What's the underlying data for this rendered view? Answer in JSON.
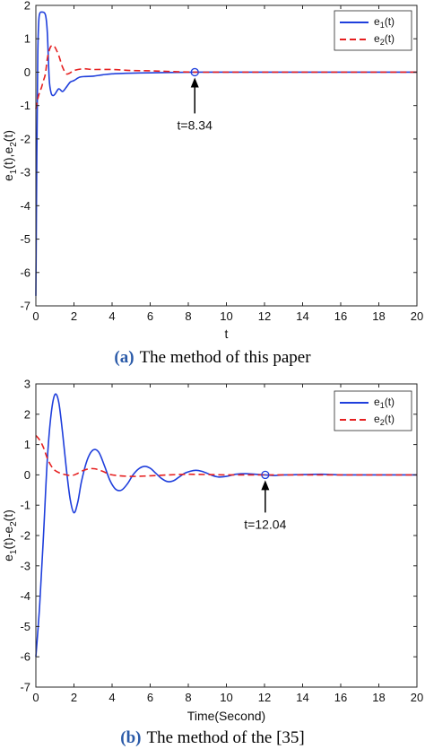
{
  "chart_data": [
    {
      "type": "line",
      "caption_letter": "(a)",
      "caption_text": "The method of this paper",
      "xlabel": "t",
      "ylabel": "e1(t),e2(t)",
      "xlim": [
        0,
        20
      ],
      "ylim": [
        -7,
        2
      ],
      "xticks": [
        0,
        2,
        4,
        6,
        8,
        10,
        12,
        14,
        16,
        18,
        20
      ],
      "yticks": [
        -7,
        -6,
        -5,
        -4,
        -3,
        -2,
        -1,
        0,
        1,
        2
      ],
      "grid": false,
      "legend_position": "top-right",
      "series": [
        {
          "name": "e1(t)",
          "color": "#1f3fdc",
          "style": "solid",
          "x": [
            0,
            0.05,
            0.1,
            0.15,
            0.2,
            0.3,
            0.5,
            0.6,
            0.7,
            0.8,
            0.9,
            1.0,
            1.2,
            1.4,
            1.6,
            1.8,
            2.0,
            2.3,
            2.6,
            3.0,
            3.5,
            4.0,
            5.0,
            6.0,
            7.0,
            8.34,
            10,
            12,
            14,
            16,
            18,
            20
          ],
          "y": [
            -6.7,
            -2.5,
            0.5,
            1.5,
            1.75,
            1.8,
            1.72,
            1.2,
            -0.2,
            -0.62,
            -0.7,
            -0.66,
            -0.5,
            -0.58,
            -0.45,
            -0.3,
            -0.25,
            -0.15,
            -0.13,
            -0.12,
            -0.08,
            -0.05,
            -0.03,
            -0.02,
            -0.01,
            0,
            0,
            0,
            0,
            0,
            0,
            0
          ]
        },
        {
          "name": "e2(t)",
          "color": "#e62020",
          "style": "dashed",
          "x": [
            0,
            0.1,
            0.2,
            0.3,
            0.4,
            0.5,
            0.6,
            0.7,
            0.8,
            0.9,
            1.0,
            1.2,
            1.4,
            1.6,
            1.8,
            2.0,
            2.5,
            3.0,
            4.0,
            5.0,
            6.0,
            7.0,
            8.34,
            10,
            12,
            14,
            16,
            18,
            20
          ],
          "y": [
            -1.1,
            -0.8,
            -0.6,
            -0.45,
            -0.25,
            -0.05,
            0.4,
            0.65,
            0.78,
            0.8,
            0.75,
            0.5,
            0.15,
            -0.05,
            -0.02,
            0.05,
            0.1,
            0.08,
            0.08,
            0.05,
            0.04,
            0.02,
            0,
            0,
            0,
            0,
            0,
            0,
            0
          ]
        }
      ],
      "annotation": {
        "label": "t=8.34",
        "x": 8.34,
        "y": 0
      }
    },
    {
      "type": "line",
      "caption_letter": "(b)",
      "caption_text": "The method of the [35]",
      "xlabel": "Time(Second)",
      "ylabel": "e1(t)-e2(t)",
      "xlim": [
        0,
        20
      ],
      "ylim": [
        -7,
        3
      ],
      "xticks": [
        0,
        2,
        4,
        6,
        8,
        10,
        12,
        14,
        16,
        18,
        20
      ],
      "yticks": [
        -7,
        -6,
        -5,
        -4,
        -3,
        -2,
        -1,
        0,
        1,
        2,
        3
      ],
      "grid": false,
      "legend_position": "top-right",
      "series": [
        {
          "name": "e1(t)",
          "color": "#1f3fdc",
          "style": "solid",
          "x": [
            0,
            0.2,
            0.4,
            0.6,
            0.8,
            1.0,
            1.2,
            1.4,
            1.6,
            1.8,
            2.0,
            2.2,
            2.4,
            2.7,
            3.0,
            3.3,
            3.6,
            3.9,
            4.2,
            4.5,
            4.8,
            5.1,
            5.4,
            5.7,
            6.0,
            6.3,
            6.6,
            6.9,
            7.2,
            7.5,
            7.8,
            8.1,
            8.4,
            8.7,
            9.0,
            9.3,
            9.6,
            10.0,
            10.5,
            11.0,
            11.5,
            12.04,
            12.5,
            13.0,
            14.0,
            15.0,
            15.5,
            16.0,
            17.0,
            18.0,
            19.0,
            20.0
          ],
          "y": [
            -6.0,
            -4.3,
            -2.0,
            0.5,
            2.0,
            2.65,
            2.4,
            1.4,
            0.2,
            -0.8,
            -1.25,
            -0.9,
            -0.2,
            0.5,
            0.82,
            0.75,
            0.3,
            -0.2,
            -0.48,
            -0.5,
            -0.3,
            0.0,
            0.2,
            0.28,
            0.22,
            0.05,
            -0.12,
            -0.22,
            -0.2,
            -0.08,
            0.05,
            0.12,
            0.15,
            0.12,
            0.05,
            -0.03,
            -0.07,
            -0.05,
            0.02,
            0.04,
            0.02,
            0.0,
            -0.02,
            0.0,
            0.01,
            0.02,
            0.01,
            0.0,
            0.0,
            0.0,
            0.0,
            0.0
          ]
        },
        {
          "name": "e2(t)",
          "color": "#e62020",
          "style": "dashed",
          "x": [
            0,
            0.2,
            0.4,
            0.6,
            0.8,
            1.0,
            1.3,
            1.6,
            1.9,
            2.2,
            2.5,
            2.8,
            3.1,
            3.5,
            4.0,
            5.0,
            6.0,
            7.0,
            8.0,
            9.0,
            10.0,
            11.0,
            12.04,
            13.0,
            14.0,
            16.0,
            18.0,
            20.0
          ],
          "y": [
            1.3,
            1.15,
            0.9,
            0.55,
            0.3,
            0.15,
            0.05,
            0.0,
            -0.02,
            0.05,
            0.15,
            0.2,
            0.2,
            0.12,
            0.0,
            -0.05,
            -0.03,
            0.0,
            0.02,
            0.01,
            0.0,
            0.0,
            0.0,
            0.0,
            0.0,
            0.0,
            0.0,
            0.0
          ]
        }
      ],
      "annotation": {
        "label": "t=12.04",
        "x": 12.04,
        "y": 0
      }
    }
  ]
}
